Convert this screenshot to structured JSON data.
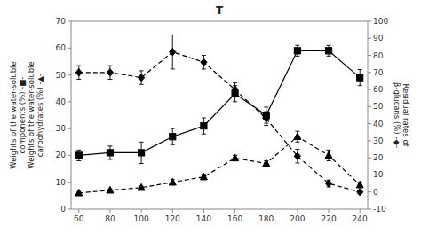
{
  "chart_data": {
    "type": "line",
    "title": "T",
    "x": [
      60,
      80,
      100,
      120,
      140,
      160,
      180,
      200,
      220,
      240
    ],
    "xlim": [
      55,
      245
    ],
    "xticks": [
      60,
      80,
      100,
      120,
      140,
      160,
      180,
      200,
      220,
      240
    ],
    "ylim": [
      0,
      70
    ],
    "yticks": [
      0,
      10,
      20,
      30,
      40,
      50,
      60,
      70
    ],
    "y2lim": [
      -10,
      100
    ],
    "y2ticks": [
      -10,
      0,
      10,
      20,
      30,
      40,
      50,
      60,
      70,
      80,
      90,
      100
    ],
    "y_label": "Weights of the water-soluble\ncomponents (%)  -■-\nWeights of the water-soluble\ncarbohydrates (%)  -▲-",
    "y2_label": "Residual rates of\nβ-glucans (%)  -◆-",
    "grid": false,
    "series": [
      {
        "color": "#000000",
        "marker": "square",
        "line_style": "solid",
        "values": [
          20,
          21,
          21,
          27,
          31,
          43,
          35,
          59,
          59,
          49
        ],
        "errors": [
          2,
          2.5,
          4,
          3,
          3,
          3,
          3,
          2,
          2,
          3
        ]
      },
      {
        "color": "#000000",
        "marker": "triangle",
        "line_style": "dashed",
        "values": [
          6,
          7,
          8,
          10,
          12,
          19,
          17,
          27,
          20,
          9
        ],
        "errors": [
          0.5,
          0.5,
          0.5,
          1,
          1,
          1,
          1,
          2,
          2,
          1
        ]
      },
      {
        "color": "#000000",
        "marker": "diamond",
        "line_style": "dashed",
        "axis": "y2",
        "values": [
          70,
          70,
          67,
          82,
          76,
          60,
          43,
          21,
          5,
          0
        ],
        "errors": [
          4,
          4,
          4,
          10,
          4,
          4,
          4,
          4,
          2,
          1
        ]
      }
    ]
  }
}
